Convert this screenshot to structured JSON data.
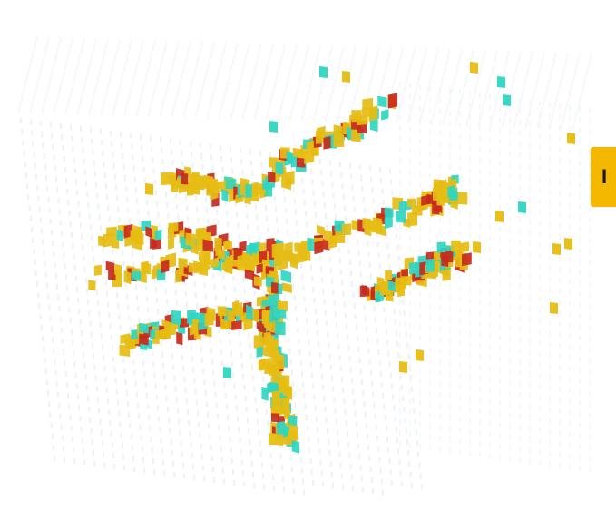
{
  "image": {
    "subject": "3d-voxel-grid-point-cloud",
    "palette": {
      "grid": "#dfe9ef",
      "grid_faint": "#eef3f6",
      "yellow": "#e6bd12",
      "cyan": "#2fd6c1",
      "red": "#c72a1c",
      "badge": "#f5b800"
    }
  },
  "badge": {
    "text": "I",
    "icon": "badge-corner-tab"
  }
}
